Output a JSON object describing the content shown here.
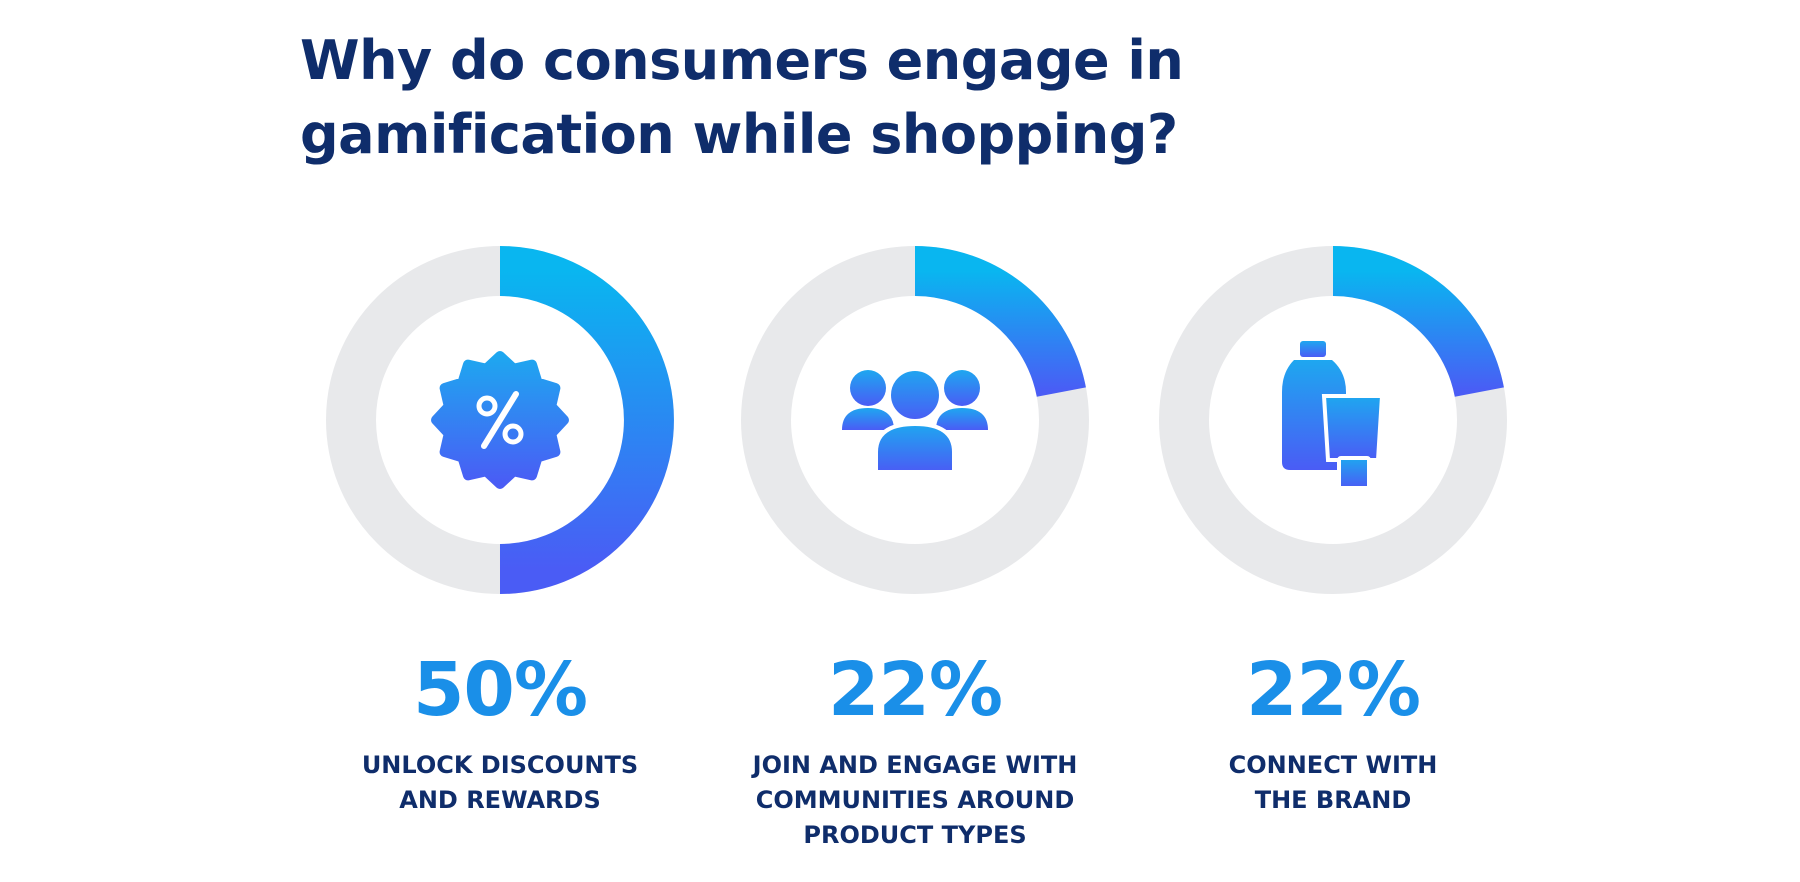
{
  "title_lines": [
    "Why do consumers engage in",
    "gamification while shopping?"
  ],
  "colors": {
    "title": "#0f2d6b",
    "value": "#1a8fe8",
    "label": "#0f2d6b",
    "track": "#e8e9eb",
    "gradient_start": "#09b6f0",
    "gradient_end": "#4a5cf5"
  },
  "chart_data": {
    "type": "pie",
    "variant": "donut",
    "title": "Why do consumers engage in gamification while shopping?",
    "unit": "%",
    "items": [
      {
        "value": 50,
        "value_label": "50%",
        "label_lines": [
          "UNLOCK DISCOUNTS",
          "AND REWARDS"
        ],
        "icon": "discount-badge-icon"
      },
      {
        "value": 22,
        "value_label": "22%",
        "label_lines": [
          "JOIN AND ENGAGE WITH",
          "COMMUNITIES AROUND",
          "PRODUCT TYPES"
        ],
        "icon": "people-group-icon"
      },
      {
        "value": 22,
        "value_label": "22%",
        "label_lines": [
          "CONNECT WITH",
          "THE BRAND"
        ],
        "icon": "product-bottles-icon"
      }
    ]
  }
}
